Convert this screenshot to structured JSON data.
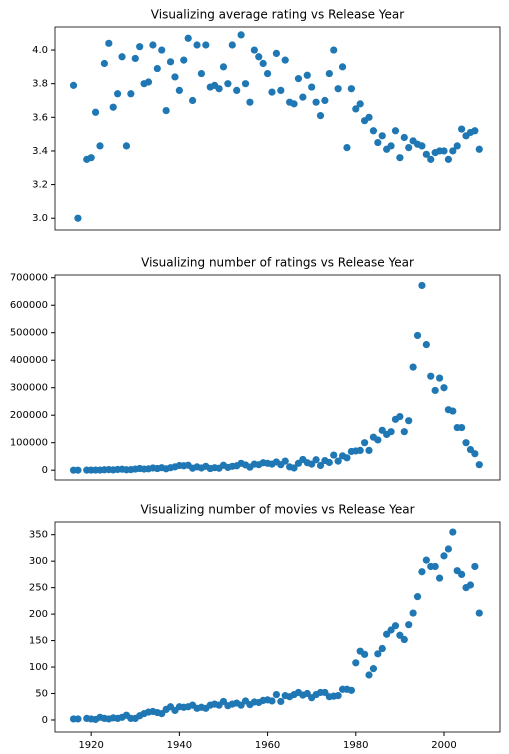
{
  "chart_data": [
    {
      "type": "scatter",
      "title": "Visualizing average rating vs Release Year",
      "color": "#1f77b4",
      "x": [
        1916,
        1917,
        1919,
        1920,
        1921,
        1922,
        1923,
        1924,
        1925,
        1926,
        1927,
        1928,
        1929,
        1930,
        1931,
        1932,
        1933,
        1934,
        1935,
        1936,
        1937,
        1938,
        1939,
        1940,
        1941,
        1942,
        1943,
        1944,
        1945,
        1946,
        1947,
        1948,
        1949,
        1950,
        1951,
        1952,
        1953,
        1954,
        1955,
        1956,
        1957,
        1958,
        1959,
        1960,
        1961,
        1962,
        1963,
        1964,
        1965,
        1966,
        1967,
        1968,
        1969,
        1970,
        1971,
        1972,
        1973,
        1974,
        1975,
        1976,
        1977,
        1978,
        1979,
        1980,
        1981,
        1982,
        1983,
        1984,
        1985,
        1986,
        1987,
        1988,
        1989,
        1990,
        1991,
        1992,
        1993,
        1994,
        1995,
        1996,
        1997,
        1998,
        1999,
        2000,
        2001,
        2002,
        2003,
        2004,
        2005,
        2006,
        2007,
        2008
      ],
      "values": [
        3.79,
        3.0,
        3.35,
        3.36,
        3.63,
        3.43,
        3.92,
        4.04,
        3.66,
        3.74,
        3.96,
        3.43,
        3.74,
        3.95,
        4.02,
        3.8,
        3.81,
        4.03,
        3.89,
        4.0,
        3.64,
        3.93,
        3.84,
        3.76,
        3.94,
        4.07,
        3.7,
        4.03,
        3.86,
        4.03,
        3.78,
        3.79,
        3.77,
        3.9,
        3.8,
        4.03,
        3.76,
        4.09,
        3.8,
        3.69,
        4.0,
        3.96,
        3.92,
        3.86,
        3.75,
        3.98,
        3.76,
        3.94,
        3.69,
        3.68,
        3.83,
        3.72,
        3.85,
        3.78,
        3.69,
        3.61,
        3.7,
        3.86,
        4.0,
        3.77,
        3.9,
        3.42,
        3.77,
        3.65,
        3.68,
        3.58,
        3.6,
        3.52,
        3.45,
        3.49,
        3.41,
        3.43,
        3.52,
        3.36,
        3.48,
        3.42,
        3.46,
        3.44,
        3.43,
        3.38,
        3.35,
        3.39,
        3.4,
        3.4,
        3.35,
        3.4,
        3.43,
        3.53,
        3.49,
        3.51,
        3.52,
        3.41
      ],
      "xlim": [
        1911.8,
        2012.7
      ],
      "ylim": [
        2.93,
        4.137
      ],
      "yticks": [
        {
          "value": 3,
          "label": "3.0"
        },
        3.2,
        3.4,
        3.6,
        3.8,
        {
          "value": 4,
          "label": "4.0"
        }
      ]
    },
    {
      "type": "scatter",
      "title": "Visualizing number of ratings vs Release Year",
      "color": "#1f77b4",
      "x": [
        1916,
        1917,
        1919,
        1920,
        1921,
        1922,
        1923,
        1924,
        1925,
        1926,
        1927,
        1928,
        1929,
        1930,
        1931,
        1932,
        1933,
        1934,
        1935,
        1936,
        1937,
        1938,
        1939,
        1940,
        1941,
        1942,
        1943,
        1944,
        1945,
        1946,
        1947,
        1948,
        1949,
        1950,
        1951,
        1952,
        1953,
        1954,
        1955,
        1956,
        1957,
        1958,
        1959,
        1960,
        1961,
        1962,
        1963,
        1964,
        1965,
        1966,
        1967,
        1968,
        1969,
        1970,
        1971,
        1972,
        1973,
        1974,
        1975,
        1976,
        1977,
        1978,
        1979,
        1980,
        1981,
        1982,
        1983,
        1984,
        1985,
        1986,
        1987,
        1988,
        1989,
        1990,
        1991,
        1992,
        1993,
        1994,
        1995,
        1996,
        1997,
        1998,
        1999,
        2000,
        2001,
        2002,
        2003,
        2004,
        2005,
        2006,
        2007,
        2008
      ],
      "values": [
        0,
        0,
        200,
        300,
        500,
        400,
        1500,
        2000,
        1000,
        2500,
        3500,
        1500,
        2000,
        4000,
        6000,
        4000,
        5000,
        8000,
        6000,
        9000,
        5000,
        9000,
        12000,
        17000,
        16000,
        18000,
        7000,
        12000,
        8000,
        14000,
        6000,
        9000,
        7000,
        18000,
        10000,
        14000,
        16000,
        25000,
        19000,
        11000,
        22000,
        20000,
        27000,
        25000,
        22000,
        30000,
        20000,
        33000,
        12000,
        8000,
        25000,
        39000,
        27000,
        22000,
        38000,
        17000,
        35000,
        28000,
        55000,
        33000,
        52000,
        45000,
        68000,
        70000,
        72000,
        100000,
        72000,
        120000,
        110000,
        145000,
        130000,
        140000,
        185000,
        195000,
        140000,
        180000,
        375000,
        490000,
        672000,
        457000,
        342000,
        290000,
        335000,
        300000,
        220000,
        215000,
        155000,
        155000,
        100000,
        75000,
        60000,
        20000
      ],
      "xlim": [
        1911.8,
        2012.7
      ],
      "ylim": [
        -35700,
        710000
      ],
      "yticks": [
        0,
        100000,
        200000,
        300000,
        400000,
        500000,
        600000,
        700000
      ]
    },
    {
      "type": "scatter",
      "title": "Visualizing number of movies vs Release Year",
      "color": "#1f77b4",
      "x": [
        1916,
        1917,
        1919,
        1920,
        1921,
        1922,
        1923,
        1924,
        1925,
        1926,
        1927,
        1928,
        1929,
        1930,
        1931,
        1932,
        1933,
        1934,
        1935,
        1936,
        1937,
        1938,
        1939,
        1940,
        1941,
        1942,
        1943,
        1944,
        1945,
        1946,
        1947,
        1948,
        1949,
        1950,
        1951,
        1952,
        1953,
        1954,
        1955,
        1956,
        1957,
        1958,
        1959,
        1960,
        1961,
        1962,
        1963,
        1964,
        1965,
        1966,
        1967,
        1968,
        1969,
        1970,
        1971,
        1972,
        1973,
        1974,
        1975,
        1976,
        1977,
        1978,
        1979,
        1980,
        1981,
        1982,
        1983,
        1984,
        1985,
        1986,
        1987,
        1988,
        1989,
        1990,
        1991,
        1992,
        1993,
        1994,
        1995,
        1996,
        1997,
        1998,
        1999,
        2000,
        2001,
        2002,
        2003,
        2004,
        2005,
        2006,
        2007,
        2008
      ],
      "values": [
        2,
        2,
        3,
        2,
        1,
        5,
        3,
        2,
        4,
        3,
        5,
        9,
        3,
        3,
        8,
        12,
        15,
        16,
        14,
        12,
        20,
        25,
        18,
        25,
        24,
        25,
        28,
        22,
        24,
        22,
        28,
        30,
        28,
        35,
        27,
        30,
        32,
        28,
        36,
        29,
        34,
        33,
        37,
        38,
        36,
        48,
        35,
        46,
        44,
        48,
        52,
        47,
        50,
        42,
        48,
        52,
        52,
        44,
        45,
        46,
        58,
        58,
        56,
        108,
        130,
        124,
        85,
        97,
        125,
        135,
        162,
        170,
        178,
        160,
        152,
        180,
        202,
        233,
        280,
        302,
        290,
        290,
        268,
        310,
        323,
        355,
        282,
        275,
        250,
        255,
        290,
        202
      ],
      "xlim": [
        1911.8,
        2012.7
      ],
      "ylim": [
        -22.7,
        374
      ],
      "yticks": [
        0,
        50,
        100,
        150,
        200,
        250,
        300,
        350
      ],
      "xticks": [
        1920,
        1940,
        1960,
        1980,
        2000
      ]
    }
  ]
}
